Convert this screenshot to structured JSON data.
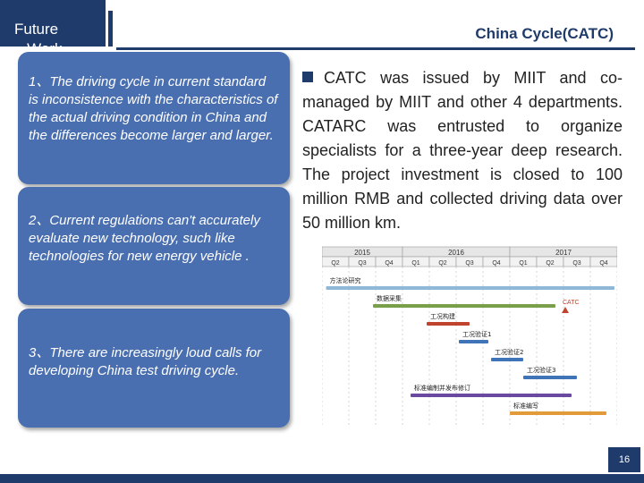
{
  "header": {
    "section_tab": "Future\n   Work",
    "title": "China Cycle(CATC)"
  },
  "left_boxes": [
    {
      "text": "1、The driving cycle in current standard is inconsistence with the characteristics of the actual driving condition in China and the differences become larger and larger."
    },
    {
      "text": "2、Current regulations can't accurately evaluate new technology, such like technologies for new energy  vehicle ."
    },
    {
      "text": "3、There are increasingly loud calls for developing China test driving cycle."
    }
  ],
  "body": {
    "paragraph": "CATC was issued by MIIT and co-managed by MIIT and other 4 departments. CATARC was entrusted to organize specialists for a three-year deep research. The project investment is closed to 100 million RMB and collected driving data over 50 million km."
  },
  "gantt": {
    "years": [
      "2015",
      "2016",
      "2017"
    ],
    "quarters": [
      "Q2",
      "Q3",
      "Q4",
      "Q1",
      "Q2",
      "Q3",
      "Q4",
      "Q1",
      "Q2",
      "Q3",
      "Q4"
    ],
    "tasks": [
      {
        "label": "方法论研究",
        "start": 0.15,
        "end": 10.9,
        "color": "#8fb8d8"
      },
      {
        "label": "数据采集",
        "start": 1.9,
        "end": 8.7,
        "color": "#7a9f4a"
      },
      {
        "label": "工况构建",
        "start": 3.9,
        "end": 5.5,
        "color": "#c0432e"
      },
      {
        "label": "工况验证1",
        "start": 5.1,
        "end": 6.2,
        "color": "#3f74b8"
      },
      {
        "label": "工况验证2",
        "start": 6.3,
        "end": 7.5,
        "color": "#3f74b8"
      },
      {
        "label": "工况验证3",
        "start": 7.5,
        "end": 9.5,
        "color": "#3f74b8"
      },
      {
        "label": "标准编制并发布修订",
        "start": 3.3,
        "end": 9.3,
        "color": "#6a4aa0"
      },
      {
        "label": "标准编写",
        "start": 7.0,
        "end": 10.6,
        "color": "#e39a3a"
      }
    ],
    "milestone_label": "CATC",
    "milestone_quarter": 8.5
  },
  "footer": {
    "page_number": "16"
  },
  "colors": {
    "accent": "#1f3b6b",
    "box": "#4a6fb0"
  }
}
